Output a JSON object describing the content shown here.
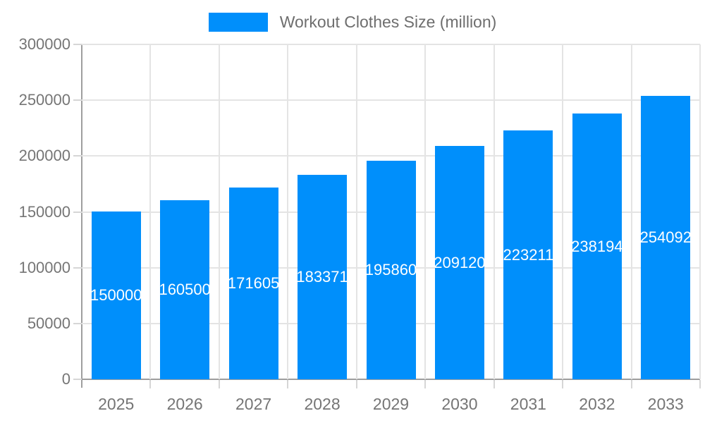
{
  "legend": {
    "label": "Workout Clothes Size (million)"
  },
  "colors": {
    "bar": "#008FFB",
    "bar_label": "#FFFFFF",
    "grid": "#E4E4E4",
    "tick": "#D6D6D6",
    "axis": "#9E9E9E",
    "axis_text": "#757575",
    "legend_text": "#6E6E6E",
    "background": "#FFFFFF"
  },
  "chart_data": {
    "type": "bar",
    "title": "Workout Clothes Size (million)",
    "categories": [
      "2025",
      "2026",
      "2027",
      "2028",
      "2029",
      "2030",
      "2031",
      "2032",
      "2033"
    ],
    "values": [
      150000,
      160500,
      171605,
      183371,
      195860,
      209120,
      223211,
      238194,
      254092
    ],
    "value_labels": [
      "150000",
      "160500",
      "171605",
      "183371",
      "195860",
      "209120",
      "223211",
      "238194",
      "254092"
    ],
    "xlabel": "",
    "ylabel": "",
    "ylim": [
      0,
      300000
    ],
    "ytick_values": [
      0,
      50000,
      100000,
      150000,
      200000,
      250000,
      300000
    ],
    "ytick_labels": [
      "0",
      "50000",
      "100000",
      "150000",
      "200000",
      "250000",
      "300000"
    ],
    "grid": true,
    "legend_position": "top",
    "value_label_position": "center-inside"
  }
}
